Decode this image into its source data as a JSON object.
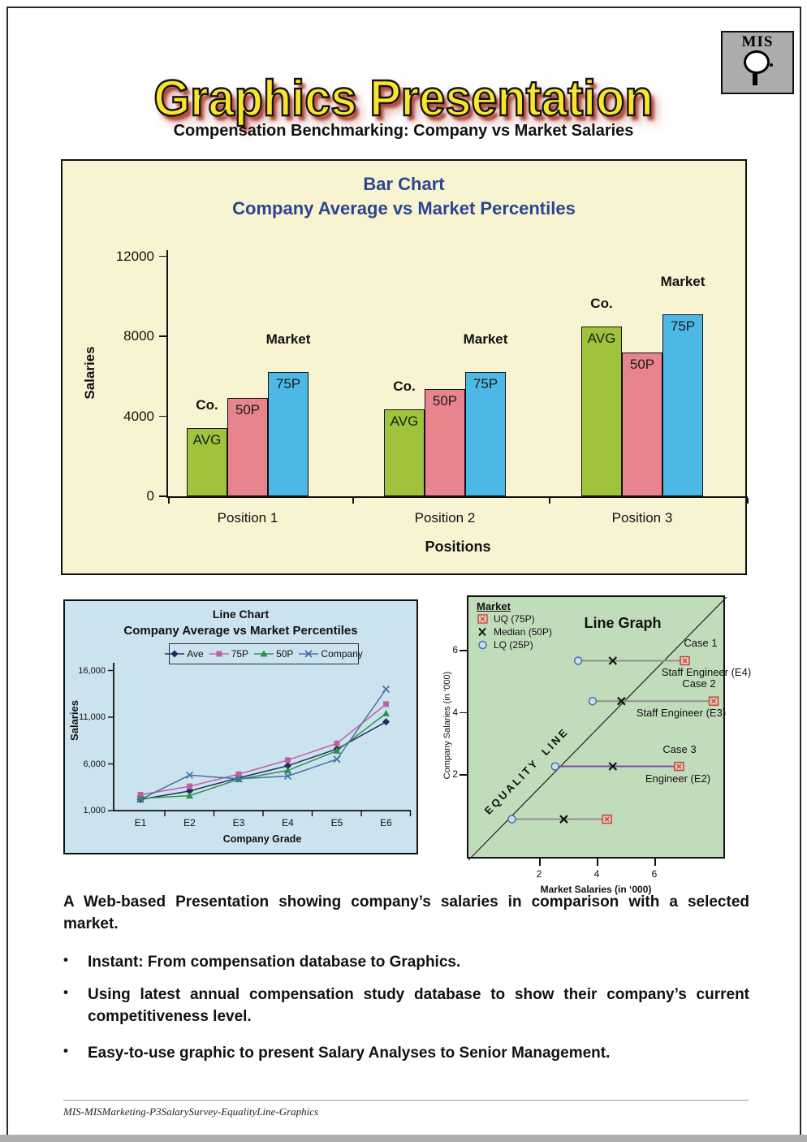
{
  "page": {
    "header_title": "Graphics Presentation",
    "logo_text": "MIS",
    "subtitle": "Compensation Benchmarking: Company vs Market Salaries",
    "footer": "MIS-MISMarketing-P3SalarySurvey-EqualityLine-Graphics"
  },
  "intro_paragraph": "A Web-based Presentation showing company’s salaries in comparison with a selected market.",
  "bullets": [
    "Instant: From compensation database to Graphics.",
    "Using latest annual compensation study database to show their company’s current competitiveness level.",
    "Easy-to-use graphic to present Salary Analyses to Senior Management."
  ],
  "chart_data": [
    {
      "type": "bar",
      "title": "Bar Chart",
      "subtitle": "Company Average vs Market Percentiles",
      "xlabel": "Positions",
      "ylabel": "Salaries",
      "categories": [
        "Position 1",
        "Position 2",
        "Position 3"
      ],
      "series": [
        {
          "name": "AVG",
          "group_label": "Co.",
          "color": "#9fc33c",
          "values": [
            3400,
            4350,
            8500
          ]
        },
        {
          "name": "50P",
          "group_label": "",
          "color": "#e8848d",
          "values": [
            4900,
            5350,
            7200
          ]
        },
        {
          "name": "75P",
          "group_label": "Market",
          "color": "#4cb8e6",
          "values": [
            6200,
            6200,
            9100
          ]
        }
      ],
      "ylim": [
        0,
        12000
      ],
      "yticks": [
        0,
        4000,
        8000,
        12000
      ],
      "legend_position": "none",
      "grid": false
    },
    {
      "type": "line",
      "title": "Line Chart",
      "subtitle": "Company Average vs Market Percentiles",
      "xlabel": "Company Grade",
      "ylabel": "Salaries",
      "categories": [
        "E1",
        "E2",
        "E3",
        "E4",
        "E5",
        "E6"
      ],
      "yticks": [
        1000,
        6000,
        11000,
        16000
      ],
      "ytick_labels": [
        "1,000",
        "6,000",
        "11,000",
        "16,000"
      ],
      "ylim": [
        1000,
        16000
      ],
      "grid": false,
      "legend_position": "top",
      "series": [
        {
          "name": "Ave",
          "marker": "diamond",
          "color": "#1f2c5c",
          "values": [
            2200,
            3100,
            4500,
            5800,
            7600,
            10500
          ]
        },
        {
          "name": "75P",
          "marker": "square",
          "color": "#c060a0",
          "values": [
            2700,
            3600,
            4900,
            6400,
            8200,
            12400
          ]
        },
        {
          "name": "50P",
          "marker": "triangle",
          "color": "#2e9147",
          "values": [
            2300,
            2600,
            4350,
            5300,
            7400,
            11400
          ]
        },
        {
          "name": "Company",
          "marker": "x",
          "color": "#4a6fa5",
          "values": [
            2200,
            4800,
            4400,
            4700,
            6500,
            14000
          ]
        }
      ]
    },
    {
      "type": "scatter",
      "title": "Line Graph",
      "xlabel": "Market Salaries (in ‘000)",
      "ylabel": "Company Salaries (in ‘000)",
      "legend_title": "Market",
      "legend": [
        {
          "label": "UQ (75P)",
          "marker": "boxed-x"
        },
        {
          "label": "Median (50P)",
          "marker": "x"
        },
        {
          "label": "LQ (25P)",
          "marker": "circle"
        }
      ],
      "equality_label": "EQUALITY LINE",
      "xticks": [
        2,
        4,
        6
      ],
      "yticks": [
        2,
        4,
        6
      ],
      "xlim": [
        0,
        8.4
      ],
      "ylim": [
        0,
        7.75
      ],
      "grid": false,
      "cases": [
        {
          "case_label": "Case 1",
          "position_label": "Staff Engineer (E4)",
          "company_salary": 5.7,
          "lq": 3.3,
          "median": 4.5,
          "uq": 7.0,
          "line_color": "#909090"
        },
        {
          "case_label": "Case 2",
          "position_label": "Staff Engineer (E3)",
          "company_salary": 4.4,
          "lq": 3.8,
          "median": 4.8,
          "uq": 8.0,
          "line_color": "#909090"
        },
        {
          "case_label": "Case 3",
          "position_label": "Engineer (E2)",
          "company_salary": 2.3,
          "lq": 2.5,
          "median": 4.5,
          "uq": 6.8,
          "line_color": "#7b4fa0"
        },
        {
          "case_label": "",
          "position_label": "",
          "company_salary": 0.6,
          "lq": 1.0,
          "median": 2.8,
          "uq": 4.3,
          "line_color": "#909090"
        }
      ]
    }
  ]
}
